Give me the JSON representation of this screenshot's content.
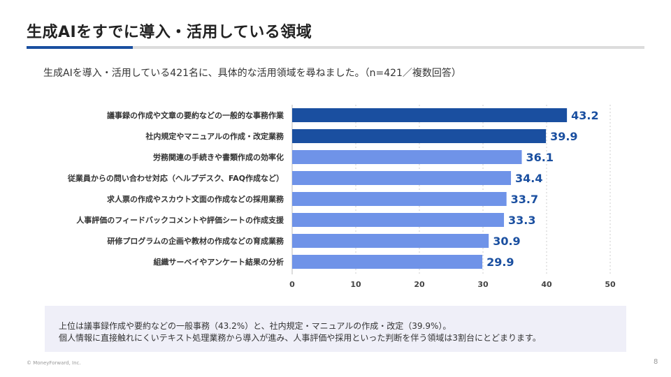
{
  "header": {
    "title": "生成AIをすでに導入・活用している領域",
    "subtitle": "生成AIを導入・活用している421名に、具体的な活用領域を尋ねました。（n=421／複数回答）"
  },
  "colors": {
    "accent": "#1a4fa0",
    "bar_dark": "#1a4fa0",
    "bar_light": "#6f93e8",
    "summary_bg": "#efeff8"
  },
  "chart_data": {
    "type": "bar",
    "orientation": "horizontal",
    "categories": [
      "議事録の作成や文章の要約などの一般的な事務作業",
      "社内規定やマニュアルの作成・改定業務",
      "労務関連の手続きや書類作成の効率化",
      "従業員からの問い合わせ対応（ヘルプデスク、FAQ作成など）",
      "求人票の作成やスカウト文面の作成などの採用業務",
      "人事評価のフィードバックコメントや評価シートの作成支援",
      "研修プログラムの企画や教材の作成などの育成業務",
      "組織サーベイやアンケート結果の分析"
    ],
    "values": [
      43.2,
      39.9,
      36.1,
      34.4,
      33.7,
      33.3,
      30.9,
      29.9
    ],
    "value_labels": [
      "43.2",
      "39.9",
      "36.1",
      "34.4",
      "33.7",
      "33.3",
      "30.9",
      "29.9"
    ],
    "highlight_top": 2,
    "xlim": [
      0,
      50
    ],
    "xticks": [
      0,
      10,
      20,
      30,
      40,
      50
    ],
    "xtick_labels": [
      "0",
      "10",
      "20",
      "30",
      "40",
      "50"
    ],
    "grid": true,
    "legend": "none"
  },
  "summary": {
    "line1": "上位は議事録作成や要約などの一般事務（43.2%）と、社内規定・マニュアルの作成・改定（39.9%）。",
    "line2": "個人情報に直接触れにくいテキスト処理業務から導入が進み、人事評価や採用といった判断を伴う領域は3割台にとどまります。"
  },
  "footer": {
    "copyright": "© MoneyForward, Inc.",
    "page_number": "8"
  }
}
